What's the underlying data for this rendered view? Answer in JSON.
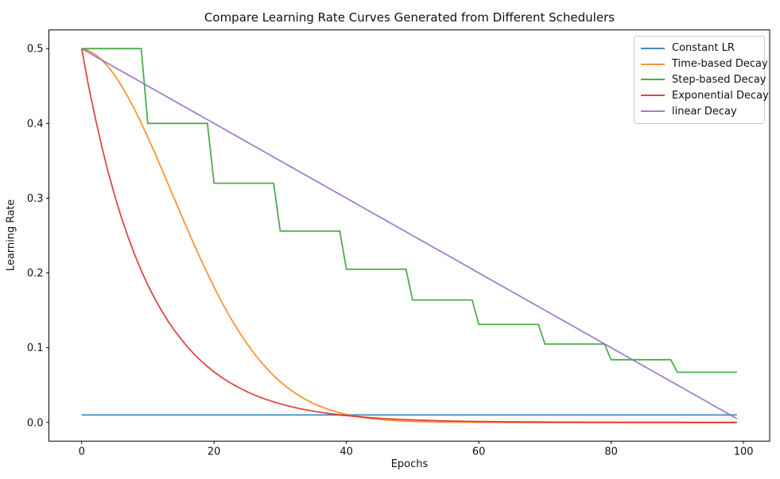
{
  "figure": {
    "title": "Compare Learning Rate Curves Generated from Different Schedulers",
    "background": "#ffffff"
  },
  "axes": {
    "xlabel": "Epochs",
    "ylabel": "Learning Rate",
    "xticks": [
      0,
      20,
      40,
      60,
      80,
      100
    ],
    "ytick_labels": [
      "0.0",
      "0.1",
      "0.2",
      "0.3",
      "0.4",
      "0.5"
    ],
    "yticks": [
      0.0,
      0.1,
      0.2,
      0.3,
      0.4,
      0.5
    ],
    "xlim": [
      -4.95,
      103.95
    ],
    "ylim": [
      -0.025,
      0.525
    ],
    "grid": false,
    "spine_color": "#000000",
    "legend_position": "upper right"
  },
  "chart_data": {
    "type": "line",
    "title": "Compare Learning Rate Curves Generated from Different Schedulers",
    "xlabel": "Epochs",
    "ylabel": "Learning Rate",
    "xlim": [
      -4.95,
      103.95
    ],
    "ylim": [
      -0.025,
      0.525
    ],
    "x": [
      0,
      1,
      2,
      3,
      4,
      5,
      6,
      7,
      8,
      9,
      10,
      11,
      12,
      13,
      14,
      15,
      16,
      17,
      18,
      19,
      20,
      21,
      22,
      23,
      24,
      25,
      26,
      27,
      28,
      29,
      30,
      31,
      32,
      33,
      34,
      35,
      36,
      37,
      38,
      39,
      40,
      41,
      42,
      43,
      44,
      45,
      46,
      47,
      48,
      49,
      50,
      51,
      52,
      53,
      54,
      55,
      56,
      57,
      58,
      59,
      60,
      61,
      62,
      63,
      64,
      65,
      66,
      67,
      68,
      69,
      70,
      71,
      72,
      73,
      74,
      75,
      76,
      77,
      78,
      79,
      80,
      81,
      82,
      83,
      84,
      85,
      86,
      87,
      88,
      89,
      90,
      91,
      92,
      93,
      94,
      95,
      96,
      97,
      98,
      99
    ],
    "series": [
      {
        "name": "Constant LR",
        "color": "#1f77b4",
        "values": [
          0.01,
          0.01,
          0.01,
          0.01,
          0.01,
          0.01,
          0.01,
          0.01,
          0.01,
          0.01,
          0.01,
          0.01,
          0.01,
          0.01,
          0.01,
          0.01,
          0.01,
          0.01,
          0.01,
          0.01,
          0.01,
          0.01,
          0.01,
          0.01,
          0.01,
          0.01,
          0.01,
          0.01,
          0.01,
          0.01,
          0.01,
          0.01,
          0.01,
          0.01,
          0.01,
          0.01,
          0.01,
          0.01,
          0.01,
          0.01,
          0.01,
          0.01,
          0.01,
          0.01,
          0.01,
          0.01,
          0.01,
          0.01,
          0.01,
          0.01,
          0.01,
          0.01,
          0.01,
          0.01,
          0.01,
          0.01,
          0.01,
          0.01,
          0.01,
          0.01,
          0.01,
          0.01,
          0.01,
          0.01,
          0.01,
          0.01,
          0.01,
          0.01,
          0.01,
          0.01,
          0.01,
          0.01,
          0.01,
          0.01,
          0.01,
          0.01,
          0.01,
          0.01,
          0.01,
          0.01,
          0.01,
          0.01,
          0.01,
          0.01,
          0.01,
          0.01,
          0.01,
          0.01,
          0.01,
          0.01,
          0.01,
          0.01,
          0.01,
          0.01,
          0.01,
          0.01,
          0.01,
          0.01,
          0.01,
          0.01
        ]
      },
      {
        "name": "Time-based Decay",
        "color": "#ff7f0e",
        "values": [
          0.5,
          0.4975,
          0.4926,
          0.4853,
          0.4758,
          0.4642,
          0.4507,
          0.4354,
          0.4187,
          0.4006,
          0.3816,
          0.3617,
          0.3412,
          0.3204,
          0.2994,
          0.2785,
          0.2579,
          0.2377,
          0.2181,
          0.1992,
          0.181,
          0.1638,
          0.1476,
          0.1324,
          0.1182,
          0.1051,
          0.093,
          0.0819,
          0.0719,
          0.0628,
          0.0546,
          0.0472,
          0.0407,
          0.035,
          0.0299,
          0.0254,
          0.0216,
          0.0182,
          0.0153,
          0.0128,
          0.0107,
          0.0088,
          0.0073,
          0.006,
          0.0049,
          0.004,
          0.0033,
          0.0027,
          0.0021,
          0.0017,
          0.0014,
          0.0011,
          0.0009,
          0.0007,
          0.0005,
          0.0004,
          0.0003,
          0.0003,
          0.0002,
          0.0002,
          0.0001,
          0.0001,
          0.0001,
          0.0001,
          0,
          0,
          0,
          0,
          0,
          0,
          0,
          0,
          0,
          0,
          0,
          0,
          0,
          0,
          0,
          0,
          0,
          0,
          0,
          0,
          0,
          0,
          0,
          0,
          0,
          0,
          0,
          0,
          0,
          0,
          0,
          0,
          0,
          0,
          0,
          0
        ]
      },
      {
        "name": "Step-based Decay",
        "color": "#2ca02c",
        "values": [
          0.5,
          0.5,
          0.5,
          0.5,
          0.5,
          0.5,
          0.5,
          0.5,
          0.5,
          0.5,
          0.4,
          0.4,
          0.4,
          0.4,
          0.4,
          0.4,
          0.4,
          0.4,
          0.4,
          0.4,
          0.32,
          0.32,
          0.32,
          0.32,
          0.32,
          0.32,
          0.32,
          0.32,
          0.32,
          0.32,
          0.256,
          0.256,
          0.256,
          0.256,
          0.256,
          0.256,
          0.256,
          0.256,
          0.256,
          0.256,
          0.2048,
          0.2048,
          0.2048,
          0.2048,
          0.2048,
          0.2048,
          0.2048,
          0.2048,
          0.2048,
          0.2048,
          0.1638,
          0.1638,
          0.1638,
          0.1638,
          0.1638,
          0.1638,
          0.1638,
          0.1638,
          0.1638,
          0.1638,
          0.1311,
          0.1311,
          0.1311,
          0.1311,
          0.1311,
          0.1311,
          0.1311,
          0.1311,
          0.1311,
          0.1311,
          0.1049,
          0.1049,
          0.1049,
          0.1049,
          0.1049,
          0.1049,
          0.1049,
          0.1049,
          0.1049,
          0.1049,
          0.0839,
          0.0839,
          0.0839,
          0.0839,
          0.0839,
          0.0839,
          0.0839,
          0.0839,
          0.0839,
          0.0839,
          0.0671,
          0.0671,
          0.0671,
          0.0671,
          0.0671,
          0.0671,
          0.0671,
          0.0671,
          0.0671,
          0.0671
        ]
      },
      {
        "name": "Exponential Decay",
        "color": "#d62728",
        "values": [
          0.5,
          0.4524,
          0.4094,
          0.3704,
          0.3352,
          0.3033,
          0.2744,
          0.2483,
          0.2247,
          0.2033,
          0.1839,
          0.1664,
          0.1506,
          0.1363,
          0.1233,
          0.1116,
          0.1009,
          0.0913,
          0.0826,
          0.0748,
          0.0677,
          0.0612,
          0.0554,
          0.0501,
          0.0454,
          0.041,
          0.0371,
          0.0336,
          0.0304,
          0.0275,
          0.0249,
          0.0225,
          0.0204,
          0.0184,
          0.0167,
          0.0151,
          0.0136,
          0.0124,
          0.0112,
          0.0101,
          0.0092,
          0.0083,
          0.0075,
          0.0068,
          0.0061,
          0.0056,
          0.005,
          0.0045,
          0.0041,
          0.0037,
          0.0034,
          0.003,
          0.0027,
          0.0025,
          0.0023,
          0.002,
          0.0018,
          0.0017,
          0.0015,
          0.0014,
          0.0012,
          0.0011,
          0.001,
          0.0009,
          0.0008,
          0.0008,
          0.0007,
          0.0006,
          0.0006,
          0.0005,
          0.0005,
          0.0004,
          0.0004,
          0.0003,
          0.0003,
          0.0003,
          0.0002,
          0.0002,
          0.0002,
          0.0002,
          0.0002,
          0.0002,
          0.0001,
          0.0001,
          0.0001,
          0.0001,
          0.0001,
          0.0001,
          0.0001,
          0.0001,
          0.0001,
          0.0001,
          0,
          0,
          0,
          0,
          0,
          0,
          0,
          0
        ]
      },
      {
        "name": "linear Decay",
        "color": "#9467bd",
        "values": [
          0.5,
          0.495,
          0.49,
          0.485,
          0.48,
          0.475,
          0.47,
          0.465,
          0.46,
          0.455,
          0.45,
          0.445,
          0.44,
          0.435,
          0.43,
          0.425,
          0.42,
          0.415,
          0.41,
          0.405,
          0.4,
          0.395,
          0.39,
          0.385,
          0.38,
          0.375,
          0.37,
          0.365,
          0.36,
          0.355,
          0.35,
          0.345,
          0.34,
          0.335,
          0.33,
          0.325,
          0.32,
          0.315,
          0.31,
          0.305,
          0.3,
          0.295,
          0.29,
          0.285,
          0.28,
          0.275,
          0.27,
          0.265,
          0.26,
          0.255,
          0.25,
          0.245,
          0.24,
          0.235,
          0.23,
          0.225,
          0.22,
          0.215,
          0.21,
          0.205,
          0.2,
          0.195,
          0.19,
          0.185,
          0.18,
          0.175,
          0.17,
          0.165,
          0.16,
          0.155,
          0.15,
          0.145,
          0.14,
          0.135,
          0.13,
          0.125,
          0.12,
          0.115,
          0.11,
          0.105,
          0.1,
          0.095,
          0.09,
          0.085,
          0.08,
          0.075,
          0.07,
          0.065,
          0.06,
          0.055,
          0.05,
          0.045,
          0.04,
          0.035,
          0.03,
          0.025,
          0.02,
          0.015,
          0.01,
          0.005
        ]
      }
    ]
  }
}
